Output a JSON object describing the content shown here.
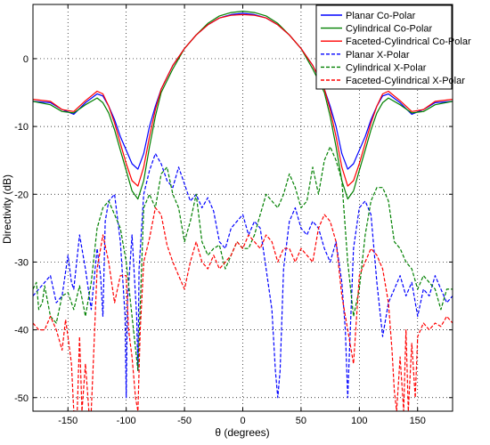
{
  "chart_data": {
    "type": "line",
    "xlabel": "θ (degrees)",
    "ylabel": "Directivity (dB)",
    "xlim": [
      -180,
      180
    ],
    "ylim": [
      -52,
      8
    ],
    "xticks": [
      -150,
      -100,
      -50,
      0,
      50,
      100,
      150
    ],
    "yticks": [
      0,
      -10,
      -20,
      -30,
      -40,
      -50
    ],
    "grid": true,
    "legend_position": "top-right",
    "series": [
      {
        "name": "Planar Co-Polar",
        "color": "#0000ff",
        "dash": "solid",
        "x": [
          -180,
          -165,
          -155,
          -145,
          -135,
          -125,
          -120,
          -115,
          -110,
          -105,
          -100,
          -95,
          -90,
          -85,
          -80,
          -75,
          -70,
          -60,
          -50,
          -40,
          -30,
          -20,
          -10,
          0,
          10,
          20,
          30,
          40,
          50,
          60,
          70,
          75,
          80,
          85,
          90,
          95,
          100,
          105,
          110,
          115,
          120,
          125,
          135,
          145,
          155,
          165,
          180
        ],
        "y": [
          -6.3,
          -6.5,
          -7.5,
          -8.2,
          -6.5,
          -5.2,
          -5.5,
          -7,
          -9,
          -11.5,
          -13.5,
          -15.5,
          -16.3,
          -14,
          -10,
          -7,
          -4.5,
          -1,
          1.5,
          3.5,
          5,
          6,
          6.5,
          6.7,
          6.5,
          6,
          5,
          3.5,
          1.5,
          -1,
          -4.5,
          -7,
          -10,
          -14,
          -16.3,
          -15.5,
          -13.5,
          -11.5,
          -9,
          -7,
          -5.5,
          -5.2,
          -6.5,
          -8.2,
          -7.5,
          -6.5,
          -6.3
        ]
      },
      {
        "name": "Cylindrical Co-Polar",
        "color": "#008000",
        "dash": "solid",
        "x": [
          -180,
          -165,
          -155,
          -145,
          -135,
          -125,
          -120,
          -115,
          -110,
          -105,
          -100,
          -95,
          -90,
          -85,
          -80,
          -75,
          -70,
          -60,
          -50,
          -40,
          -30,
          -20,
          -10,
          0,
          10,
          20,
          30,
          40,
          50,
          60,
          70,
          75,
          80,
          85,
          90,
          95,
          100,
          105,
          110,
          115,
          120,
          125,
          135,
          145,
          155,
          165,
          180
        ],
        "y": [
          -6.3,
          -6.8,
          -7.8,
          -8,
          -6.8,
          -5.8,
          -6.5,
          -8,
          -10.5,
          -13.5,
          -16.5,
          -19.5,
          -20.7,
          -18,
          -13,
          -8.5,
          -5,
          -1.5,
          1.5,
          3.5,
          5.2,
          6.3,
          6.8,
          7,
          6.8,
          6.3,
          5.2,
          3.5,
          1.5,
          -1.5,
          -5,
          -8.5,
          -13,
          -18,
          -20.7,
          -19.5,
          -16.5,
          -13.5,
          -10.5,
          -8,
          -6.5,
          -5.8,
          -6.8,
          -8,
          -7.8,
          -6.8,
          -6.3
        ]
      },
      {
        "name": "Faceted-Cylindrical Co-Polar",
        "color": "#ff0000",
        "dash": "solid",
        "x": [
          -180,
          -165,
          -155,
          -145,
          -135,
          -125,
          -120,
          -115,
          -110,
          -105,
          -100,
          -95,
          -90,
          -85,
          -80,
          -75,
          -70,
          -60,
          -50,
          -40,
          -30,
          -20,
          -10,
          0,
          10,
          20,
          30,
          40,
          50,
          60,
          70,
          75,
          80,
          85,
          90,
          95,
          100,
          105,
          110,
          115,
          120,
          125,
          135,
          145,
          155,
          165,
          180
        ],
        "y": [
          -6,
          -6.3,
          -7.5,
          -7.8,
          -6.2,
          -4.8,
          -5.2,
          -7,
          -9.5,
          -12.5,
          -15.5,
          -18,
          -18.8,
          -16,
          -11.5,
          -7.5,
          -4.5,
          -1,
          1.5,
          3.5,
          5,
          6,
          6.4,
          6.5,
          6.4,
          6,
          5,
          3.5,
          1.5,
          -1,
          -4.5,
          -7.5,
          -11.5,
          -16,
          -18.8,
          -18,
          -15.5,
          -12.5,
          -9.5,
          -7,
          -5.2,
          -4.8,
          -6.2,
          -7.8,
          -7.5,
          -6.3,
          -6
        ]
      },
      {
        "name": "Planar X-Polar",
        "color": "#0000ff",
        "dash": "dashed",
        "x": [
          -180,
          -175,
          -170,
          -165,
          -160,
          -155,
          -150,
          -147,
          -145,
          -140,
          -135,
          -130,
          -125,
          -122,
          -120,
          -118,
          -115,
          -110,
          -105,
          -101,
          -100,
          -99,
          -95,
          -91,
          -90,
          -89,
          -85,
          -80,
          -75,
          -70,
          -65,
          -60,
          -55,
          -50,
          -45,
          -40,
          -35,
          -30,
          -25,
          -20,
          -15,
          -10,
          -5,
          0,
          5,
          10,
          15,
          20,
          25,
          28,
          30,
          32,
          35,
          40,
          45,
          50,
          55,
          60,
          65,
          70,
          75,
          80,
          85,
          88,
          90,
          92,
          95,
          100,
          105,
          110,
          115,
          120,
          125,
          130,
          135,
          140,
          145,
          150,
          155,
          160,
          165,
          170,
          175,
          180
        ],
        "y": [
          -35,
          -34,
          -33,
          -32,
          -36,
          -35,
          -29,
          -33,
          -34,
          -26,
          -31,
          -37,
          -28,
          -32,
          -38,
          -24,
          -21,
          -20,
          -27,
          -38,
          -50,
          -36,
          -26,
          -38,
          -46,
          -31,
          -20,
          -16.5,
          -14,
          -15.5,
          -18,
          -19,
          -16,
          -18.5,
          -21,
          -20,
          -22,
          -20.5,
          -22.5,
          -27,
          -28,
          -25,
          -24,
          -23,
          -26,
          -24,
          -25,
          -31,
          -37,
          -46,
          -50,
          -46,
          -31,
          -24,
          -22,
          -25,
          -26,
          -24,
          -25,
          -28,
          -30,
          -27,
          -33,
          -40,
          -50,
          -41,
          -28,
          -22,
          -21,
          -23,
          -33,
          -41,
          -36,
          -34,
          -32,
          -35,
          -33,
          -38,
          -34,
          -35,
          -32,
          -34,
          -36,
          -35
        ]
      },
      {
        "name": "Cylindrical X-Polar",
        "color": "#008000",
        "dash": "dashed",
        "x": [
          -180,
          -177,
          -175,
          -172,
          -170,
          -165,
          -160,
          -155,
          -150,
          -145,
          -140,
          -135,
          -130,
          -125,
          -120,
          -115,
          -110,
          -105,
          -100,
          -95,
          -90,
          -85,
          -80,
          -75,
          -70,
          -65,
          -60,
          -55,
          -50,
          -45,
          -40,
          -35,
          -30,
          -25,
          -20,
          -15,
          -10,
          -5,
          0,
          5,
          10,
          15,
          20,
          25,
          30,
          35,
          40,
          45,
          50,
          55,
          60,
          65,
          70,
          75,
          80,
          85,
          90,
          95,
          100,
          105,
          110,
          115,
          120,
          125,
          130,
          135,
          140,
          145,
          150,
          155,
          160,
          165,
          170,
          175,
          180
        ],
        "y": [
          -34,
          -33,
          -37,
          -36,
          -33.5,
          -38,
          -39,
          -35,
          -34.5,
          -37,
          -33.5,
          -38,
          -33,
          -25,
          -22,
          -21,
          -23,
          -25,
          -30,
          -38,
          -46,
          -22,
          -20,
          -22,
          -17,
          -16,
          -20,
          -22,
          -27,
          -24,
          -20,
          -27,
          -29,
          -28,
          -27.5,
          -31,
          -29,
          -27,
          -28,
          -28,
          -26,
          -23,
          -20,
          -21,
          -22,
          -20,
          -17,
          -19,
          -22,
          -21,
          -16,
          -20,
          -15,
          -13,
          -15,
          -18,
          -30,
          -38,
          -34,
          -26,
          -21,
          -19,
          -19,
          -21,
          -27,
          -28,
          -30,
          -31,
          -34,
          -32,
          -33,
          -34,
          -37,
          -34,
          -34
        ]
      },
      {
        "name": "Faceted-Cylindrical X-Polar",
        "color": "#ff0000",
        "dash": "dashed",
        "x": [
          -180,
          -175,
          -170,
          -165,
          -160,
          -155,
          -152,
          -150,
          -147,
          -145,
          -142,
          -140,
          -138,
          -135,
          -132,
          -130,
          -128,
          -125,
          -120,
          -115,
          -110,
          -105,
          -100,
          -98,
          -95,
          -92,
          -90,
          -88,
          -85,
          -80,
          -75,
          -70,
          -65,
          -60,
          -55,
          -50,
          -45,
          -40,
          -35,
          -30,
          -25,
          -20,
          -15,
          -10,
          -5,
          0,
          5,
          10,
          15,
          20,
          25,
          30,
          35,
          40,
          45,
          50,
          55,
          60,
          65,
          70,
          75,
          80,
          85,
          90,
          95,
          100,
          105,
          110,
          115,
          120,
          125,
          128,
          130,
          132,
          135,
          138,
          140,
          142,
          145,
          148,
          150,
          155,
          160,
          165,
          170,
          175,
          180
        ],
        "y": [
          -39,
          -40,
          -40,
          -38,
          -40,
          -43,
          -38.5,
          -41,
          -45,
          -52,
          -52,
          -41,
          -52,
          -45,
          -52,
          -52,
          -44,
          -31,
          -26,
          -30,
          -36,
          -32,
          -32,
          -40,
          -44,
          -50,
          -52,
          -40,
          -30,
          -26.5,
          -22,
          -23,
          -27.5,
          -30,
          -32,
          -34,
          -30,
          -27,
          -30,
          -31,
          -29,
          -31,
          -30,
          -29,
          -27,
          -28,
          -26,
          -27,
          -28,
          -26,
          -27,
          -30,
          -28,
          -28,
          -30,
          -28,
          -29,
          -30,
          -25,
          -23,
          -24,
          -27,
          -35,
          -40,
          -45,
          -32,
          -30,
          -28,
          -29,
          -31,
          -36,
          -43,
          -49,
          -52,
          -44,
          -52,
          -40,
          -52,
          -42,
          -50,
          -41,
          -39,
          -40,
          -39,
          -39.5,
          -38,
          -39
        ]
      }
    ]
  }
}
